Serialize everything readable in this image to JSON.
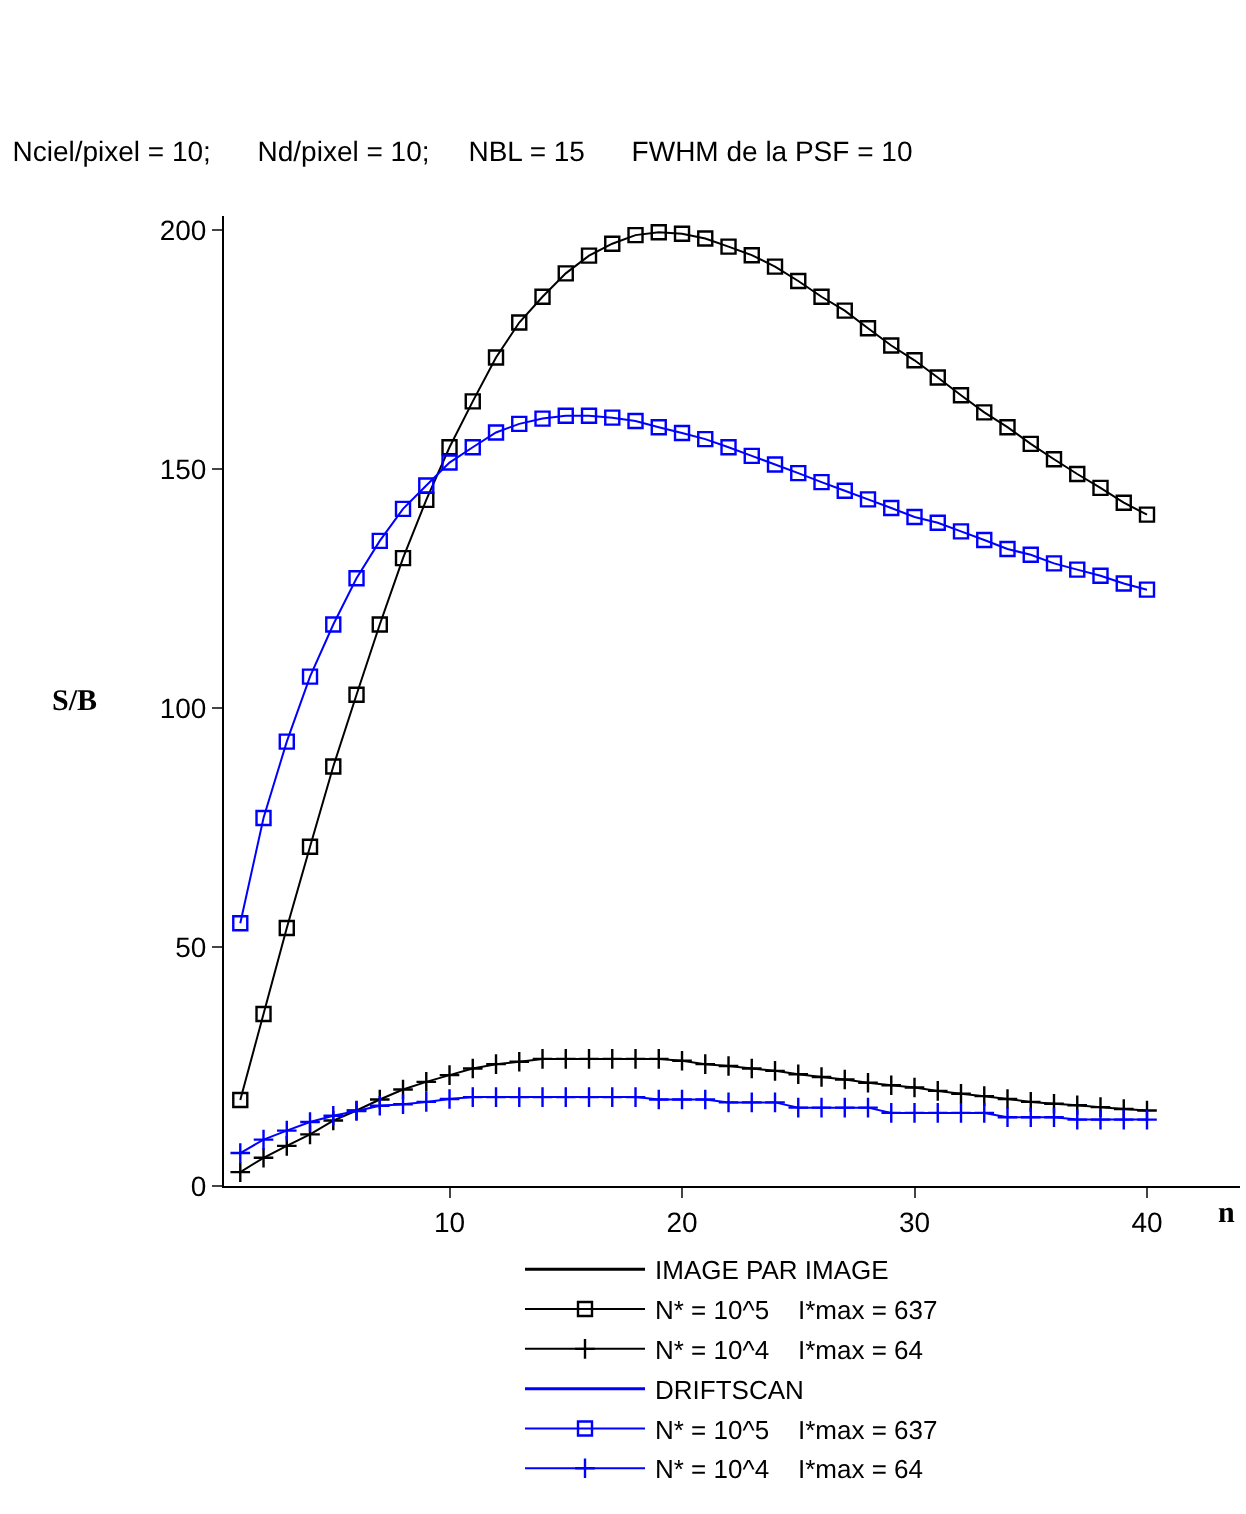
{
  "chart_data": {
    "type": "line",
    "title": "Nciel/pixel = 10;      Nd/pixel = 10;     NBL = 15      FWHM de la PSF = 10",
    "xlabel": "n",
    "ylabel": "S/B",
    "annotations": [
      "IMAGE PAR IMAGE",
      "DRIFTSCAN"
    ],
    "x": [
      1,
      2,
      3,
      4,
      5,
      6,
      7,
      8,
      9,
      10,
      11,
      12,
      13,
      14,
      15,
      16,
      17,
      18,
      19,
      20,
      21,
      22,
      23,
      24,
      25,
      26,
      27,
      28,
      29,
      30,
      31,
      32,
      33,
      34,
      35,
      36,
      37,
      38,
      39,
      40
    ],
    "series": [
      {
        "name": "N* = 10^5    I*max = 637",
        "color": "#000000",
        "marker": "square",
        "values": [
          18,
          36,
          54,
          71,
          87.8,
          102.8,
          117.5,
          131.4,
          143.6,
          154.6,
          164.2,
          173.4,
          180.7,
          186.1,
          191,
          194.7,
          197.2,
          199,
          199.6,
          199.3,
          198.3,
          196.6,
          194.8,
          192.4,
          189.4,
          186.1,
          183.2,
          179.5,
          175.9,
          172.8,
          169.2,
          165.5,
          161.9,
          158.8,
          155.3,
          152.1,
          149,
          146.1,
          143,
          140.5
        ]
      },
      {
        "name": "N* = 10^4    I*max = 64",
        "color": "#000000",
        "marker": "cross",
        "values": [
          2.9,
          5.9,
          8.4,
          10.8,
          13.7,
          15.8,
          18.1,
          20.2,
          21.8,
          23.2,
          24.6,
          25.5,
          26,
          26.6,
          26.6,
          26.6,
          26.6,
          26.6,
          26.6,
          26.2,
          25.5,
          25.1,
          24.6,
          24.1,
          23.4,
          22.8,
          22.3,
          21.6,
          21.1,
          20.6,
          19.9,
          19.3,
          18.8,
          18.2,
          17.6,
          17.2,
          16.9,
          16.5,
          16.1,
          15.8
        ]
      },
      {
        "name": "N* = 10^5    I*max = 637",
        "color": "#0000ff",
        "marker": "square",
        "values": [
          55,
          77,
          93,
          106.6,
          117.5,
          127.2,
          135,
          141.7,
          146.6,
          151.4,
          154.6,
          157.7,
          159.5,
          160.6,
          161.2,
          161.2,
          160.8,
          160.1,
          158.8,
          157.6,
          156.3,
          154.6,
          152.8,
          151,
          149.2,
          147.3,
          145.5,
          143.7,
          141.9,
          140,
          138.8,
          137,
          135.2,
          133.3,
          132.1,
          130.3,
          129,
          127.7,
          126.1,
          124.8
        ]
      },
      {
        "name": "N* = 10^4    I*max = 64",
        "color": "#0000ff",
        "marker": "cross",
        "values": [
          6.9,
          9.7,
          11.6,
          13.4,
          14.7,
          15.7,
          16.8,
          17.1,
          17.6,
          18.2,
          18.6,
          18.6,
          18.6,
          18.6,
          18.6,
          18.6,
          18.6,
          18.6,
          18.1,
          18.1,
          18.1,
          17.5,
          17.5,
          17.5,
          16.4,
          16.4,
          16.4,
          16.4,
          15.3,
          15.3,
          15.3,
          15.3,
          15.3,
          14.4,
          14.4,
          14.4,
          13.9,
          13.9,
          13.9,
          13.9
        ]
      }
    ],
    "xlim": [
      0.3,
      44
    ],
    "xticks": [
      10,
      20,
      30,
      40
    ],
    "ylim": [
      0,
      203
    ],
    "yticks": [
      0,
      50,
      100,
      150,
      200
    ],
    "grid": false,
    "legend": "bottom",
    "line_style": "solid"
  }
}
